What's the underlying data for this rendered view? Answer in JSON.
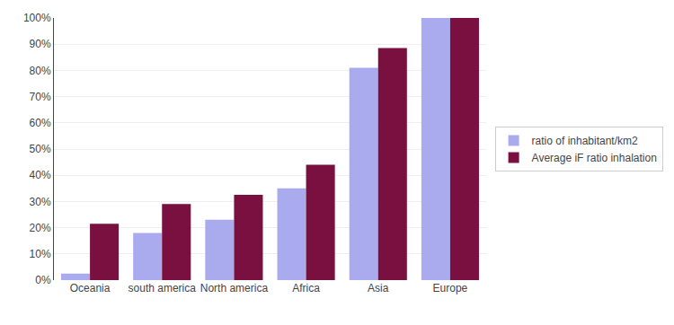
{
  "chart_data": {
    "type": "bar",
    "categories": [
      "Oceania",
      "south america",
      "North america",
      "Africa",
      "Asia",
      "Europe"
    ],
    "series": [
      {
        "name": "ratio of inhabitant/km2",
        "color": "#aaaaee",
        "values": [
          2.5,
          18,
          23,
          35,
          81,
          100
        ]
      },
      {
        "name": "Average iF ratio inhalation",
        "color": "#7a1040",
        "values": [
          21.5,
          29,
          32.5,
          44,
          88.5,
          100
        ]
      }
    ],
    "ylim": [
      0,
      100
    ],
    "yticks": [
      {
        "value": 0,
        "label": "0%"
      },
      {
        "value": 10,
        "label": "10%"
      },
      {
        "value": 20,
        "label": "20%"
      },
      {
        "value": 30,
        "label": "30%"
      },
      {
        "value": 40,
        "label": "40%"
      },
      {
        "value": 50,
        "label": "50%"
      },
      {
        "value": 60,
        "label": "60%"
      },
      {
        "value": 70,
        "label": "70%"
      },
      {
        "value": 80,
        "label": "80%"
      },
      {
        "value": 90,
        "label": "90%"
      },
      {
        "value": 100,
        "label": "100%"
      }
    ],
    "grid": true,
    "legend": "right"
  }
}
